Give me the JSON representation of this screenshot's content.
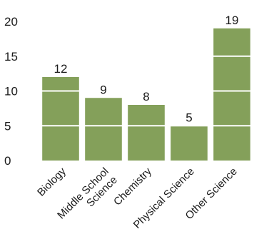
{
  "chart_data": {
    "type": "bar",
    "categories": [
      "Biology",
      "Middle School\nScience",
      "Chemistry",
      "Physical Science",
      "Other Science"
    ],
    "values": [
      12,
      9,
      8,
      5,
      19
    ],
    "data_labels": [
      "12",
      "9",
      "8",
      "5",
      "19"
    ],
    "title": "",
    "xlabel": "",
    "ylabel": "",
    "ylim": [
      0,
      20
    ],
    "yticks": [
      0,
      5,
      10,
      15,
      20
    ],
    "ytick_labels": [
      "0",
      "5",
      "10",
      "15",
      "20"
    ],
    "grid": "horizontal white lines over bars",
    "legend": "none",
    "bar_color": "#84a05a",
    "gridline_color": "#ffffff"
  }
}
